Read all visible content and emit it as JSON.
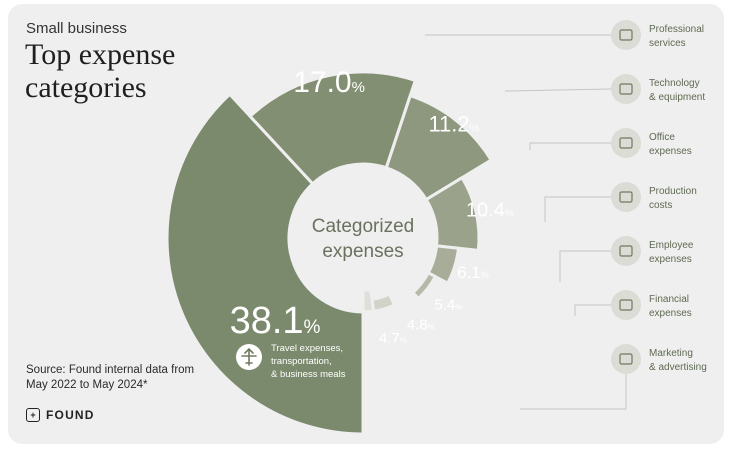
{
  "header": {
    "subtitle": "Small business",
    "title": "Top expense categories"
  },
  "source": "Source: Found internal data from May 2022 to May 2024*",
  "logo": {
    "text": "FOUND",
    "icon": "found-logo-icon"
  },
  "colors": {
    "card_bg": "#efefef",
    "legend_circle": "#dcdcd6",
    "legend_icon": "#707a60",
    "connector": "#c5c5c0"
  },
  "chart_data": {
    "type": "pie",
    "variant": "donut",
    "center_label": "Categorized expenses",
    "slices": [
      {
        "label": "Travel expenses, transportation, & business meals",
        "value": 38.1,
        "display": "38.1",
        "color": "#7b8a6c",
        "icon": "airplane-icon"
      },
      {
        "label": "Professional services",
        "value": 17.0,
        "display": "17.0",
        "color": "#838f72",
        "icon": "briefcase-icon"
      },
      {
        "label": "Technology & equipment",
        "value": 11.2,
        "display": "11.2",
        "color": "#8e987e",
        "icon": "laptop-icon"
      },
      {
        "label": "Office expenses",
        "value": 10.4,
        "display": "10.4",
        "color": "#9ba28b",
        "icon": "building-icon"
      },
      {
        "label": "Production costs",
        "value": 6.1,
        "display": "6.1",
        "color": "#a7ad98",
        "icon": "monitor-icon"
      },
      {
        "label": "Employee expenses",
        "value": 5.4,
        "display": "5.4",
        "color": "#b5b9a8",
        "icon": "id-card-icon"
      },
      {
        "label": "Financial expenses",
        "value": 4.8,
        "display": "4.8",
        "color": "#c4c6b8",
        "icon": "cash-icon"
      },
      {
        "label": "Marketing & advertising",
        "value": 4.7,
        "display": "4.7",
        "color": "#d1d2c8",
        "icon": "megaphone-icon"
      },
      {
        "label": "",
        "value": 2.3,
        "display": "",
        "color": "#dfdfda",
        "icon": ""
      }
    ],
    "unit": "%",
    "legend": [
      {
        "line1": "Professional",
        "line2": "services",
        "icon": "briefcase-icon"
      },
      {
        "line1": "Technology",
        "line2": "& equipment",
        "icon": "laptop-icon"
      },
      {
        "line1": "Office",
        "line2": "expenses",
        "icon": "building-icon"
      },
      {
        "line1": "Production",
        "line2": "costs",
        "icon": "monitor-icon"
      },
      {
        "line1": "Employee",
        "line2": "expenses",
        "icon": "id-card-icon"
      },
      {
        "line1": "Financial",
        "line2": "expenses",
        "icon": "cash-icon"
      },
      {
        "line1": "Marketing",
        "line2": "& advertising",
        "icon": "megaphone-icon"
      }
    ],
    "travel_callout": [
      "Travel expenses,",
      "transportation,",
      "& business meals"
    ]
  }
}
